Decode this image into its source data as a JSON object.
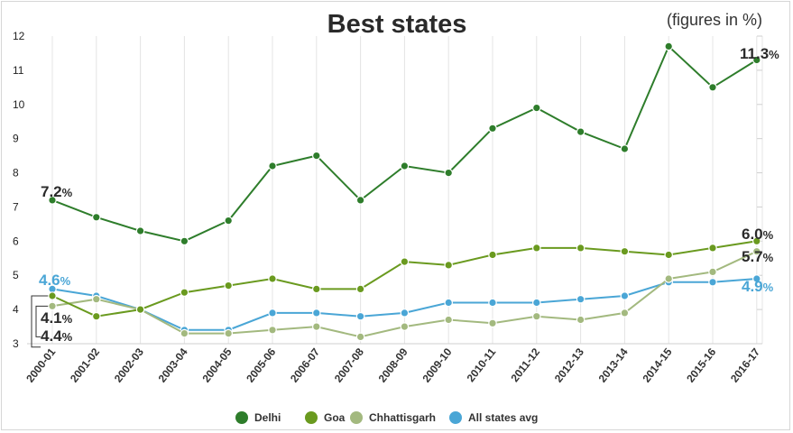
{
  "chart_data": {
    "type": "line",
    "title": "Best states",
    "subtitle": "(figures in %)",
    "xlabel": "",
    "ylabel": "",
    "categories": [
      "2000-01",
      "2001-02",
      "2002-03",
      "2003-04",
      "2004-05",
      "2005-06",
      "2006-07",
      "2007-08",
      "2008-09",
      "2009-10",
      "2010-11",
      "2011-12",
      "2012-13",
      "2013-14",
      "2014-15",
      "2015-16",
      "2016-17"
    ],
    "y_ticks": [
      3,
      4,
      5,
      6,
      7,
      8,
      9,
      10,
      11,
      12
    ],
    "ylim": [
      3,
      12
    ],
    "grid": "vertical",
    "legend_position": "bottom-center",
    "series": [
      {
        "name": "Delhi",
        "color": "#2e7d2b",
        "values": [
          7.2,
          6.7,
          6.3,
          6.0,
          6.6,
          8.2,
          8.5,
          7.2,
          8.2,
          8.0,
          9.3,
          9.9,
          9.2,
          8.7,
          11.7,
          10.5,
          11.3
        ]
      },
      {
        "name": "Goa",
        "color": "#6a9a1f",
        "values": [
          4.4,
          3.8,
          4.0,
          4.5,
          4.7,
          4.9,
          4.6,
          4.6,
          5.4,
          5.3,
          5.6,
          5.8,
          5.8,
          5.7,
          5.6,
          5.8,
          6.0
        ]
      },
      {
        "name": "Chhattisgarh",
        "color": "#a3b97f",
        "values": [
          4.1,
          4.3,
          4.0,
          3.3,
          3.3,
          3.4,
          3.5,
          3.2,
          3.5,
          3.7,
          3.6,
          3.8,
          3.7,
          3.9,
          4.9,
          5.1,
          5.7
        ]
      },
      {
        "name": "All states avg",
        "color": "#4aa6d6",
        "values": [
          4.6,
          4.4,
          4.0,
          3.4,
          3.4,
          3.9,
          3.9,
          3.8,
          3.9,
          4.2,
          4.2,
          4.2,
          4.3,
          4.4,
          4.8,
          4.8,
          4.9
        ]
      }
    ],
    "data_labels": [
      {
        "num": "7.2",
        "pct": "%",
        "color": "#2a2a2a"
      },
      {
        "num": "4.6",
        "pct": "%",
        "color": "#4aa6d6"
      },
      {
        "num": "4.1",
        "pct": "%",
        "color": "#2a2a2a"
      },
      {
        "num": "4.4",
        "pct": "%",
        "color": "#2a2a2a"
      },
      {
        "num": "11.3",
        "pct": "%",
        "color": "#2a2a2a"
      },
      {
        "num": "6.0",
        "pct": "%",
        "color": "#2a2a2a"
      },
      {
        "num": "5.7",
        "pct": "%",
        "color": "#2a2a2a"
      },
      {
        "num": "4.9",
        "pct": "%",
        "color": "#4aa6d6"
      }
    ]
  }
}
